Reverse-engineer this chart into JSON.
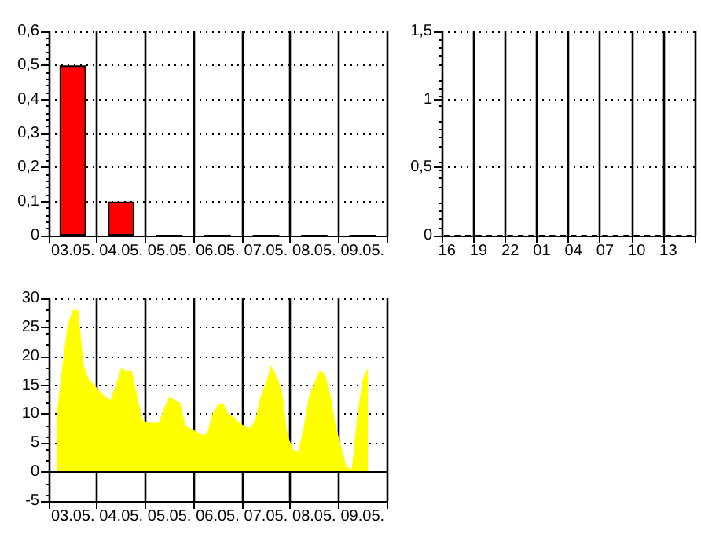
{
  "chart_data": [
    {
      "type": "bar",
      "categories": [
        "03.05.",
        "04.05.",
        "05.05.",
        "06.05.",
        "07.05.",
        "08.05.",
        "09.05."
      ],
      "values": [
        0.5,
        0.1,
        0,
        0,
        0,
        0,
        0
      ],
      "color": "#ff0000",
      "ylim": [
        0,
        0.6
      ],
      "yticks": [
        0,
        {
          "value": 0.1,
          "label": "0,1"
        },
        {
          "value": 0.2,
          "label": "0,2"
        },
        {
          "value": 0.3,
          "label": "0,3"
        },
        {
          "value": 0.4,
          "label": "0,4"
        },
        {
          "value": 0.5,
          "label": "0,5"
        },
        {
          "value": 0.6,
          "label": "0,6"
        }
      ],
      "grid": true
    },
    {
      "type": "bar",
      "categories": [
        "16",
        null,
        null,
        "19",
        null,
        null,
        "22",
        null,
        null,
        "01",
        null,
        null,
        "04",
        null,
        null,
        "07",
        null,
        null,
        "10",
        null,
        null,
        "13",
        null,
        null
      ],
      "values": [
        0,
        0,
        0,
        0,
        0,
        0,
        0,
        0,
        0,
        0,
        0,
        0,
        0,
        0,
        0,
        0,
        0,
        0,
        0,
        0,
        0,
        0,
        0,
        0
      ],
      "color": "#ff0000",
      "ylim": [
        0,
        1.5
      ],
      "yticks": [
        0,
        {
          "value": 0.5,
          "label": "0,5"
        },
        1,
        {
          "value": 1.5,
          "label": "1,5"
        }
      ],
      "grid": true
    },
    {
      "type": "area",
      "categories": [
        null,
        null,
        null,
        null,
        "03.05.",
        null,
        null,
        null,
        null,
        null,
        null,
        null,
        null,
        "04.05.",
        null,
        null,
        null,
        null,
        null,
        null,
        null,
        null,
        "05.05.",
        null,
        null,
        null,
        null,
        null,
        null,
        null,
        null,
        "06.05.",
        null,
        null,
        null,
        null,
        null,
        null,
        null,
        null,
        "07.05.",
        null,
        null,
        null,
        null,
        null,
        null,
        null,
        null,
        "08.05.",
        null,
        null,
        null,
        null,
        null,
        null,
        null,
        null,
        "09.05.",
        null,
        null,
        null,
        null
      ],
      "values": [
        null,
        10,
        18,
        25.5,
        28,
        28,
        18.5,
        16,
        15,
        14,
        13,
        12.5,
        15,
        18,
        17.5,
        17.5,
        13,
        9,
        8.5,
        8.5,
        8.5,
        11,
        13,
        12.5,
        12,
        8,
        7.5,
        7,
        6.5,
        6.5,
        10,
        11.5,
        12,
        10,
        9.5,
        8.5,
        8,
        7.5,
        9,
        13,
        15.5,
        18.5,
        16.5,
        14,
        6.5,
        4,
        3.5,
        7.5,
        13,
        15.5,
        17.5,
        17,
        13.5,
        8,
        4.5,
        1,
        0.5,
        9.5,
        16,
        18,
        null,
        null,
        null
      ],
      "color": "#ffff00",
      "ylim": [
        -5,
        30
      ],
      "yticks": [
        -5,
        0,
        5,
        10,
        15,
        20,
        25,
        30
      ],
      "grid": true,
      "ref_lines": [
        {
          "axis": "y",
          "value": 0,
          "color": "#000000"
        }
      ]
    }
  ]
}
